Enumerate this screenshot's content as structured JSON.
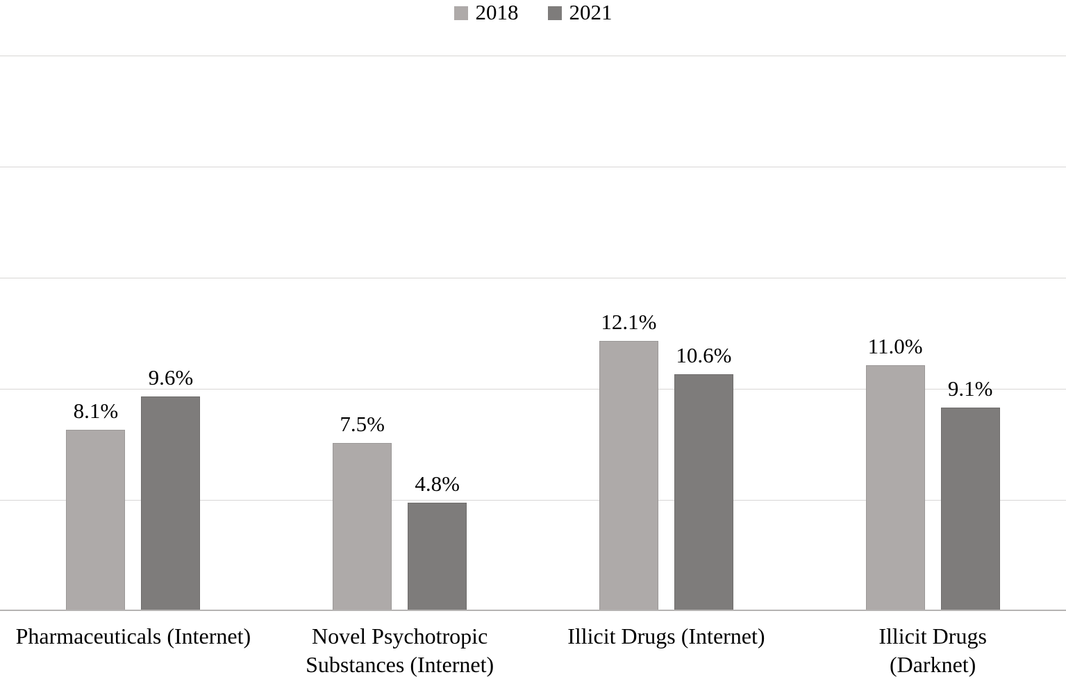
{
  "chart_data": {
    "type": "bar",
    "title": "",
    "xlabel": "",
    "ylabel": "",
    "categories": [
      "Pharmaceuticals (Internet)",
      "Novel Psychotropic\nSubstances (Internet)",
      "Illicit Drugs (Internet)",
      "Illicit Drugs (Darknet)"
    ],
    "series": [
      {
        "name": "2018",
        "color": "#aeaaa9",
        "border_color": "#9b9897",
        "values": [
          8.1,
          7.5,
          12.1,
          11.0
        ],
        "value_labels": [
          "8.1%",
          "7.5%",
          "12.1%",
          "11.0%"
        ]
      },
      {
        "name": "2021",
        "color": "#7e7c7b",
        "border_color": "#6f6d6c",
        "values": [
          9.6,
          4.8,
          10.6,
          9.1
        ],
        "value_labels": [
          "9.6%",
          "4.8%",
          "10.6%",
          "9.1%"
        ]
      }
    ],
    "ylim": [
      0,
      25
    ],
    "gridline_interval": 5,
    "grid": true,
    "y_tick_labels_visible": false,
    "legend_position": "top-center",
    "colors": {
      "background": "#ffffff",
      "gridline": "#d8d6d5",
      "axis_line": "#b5b3b2",
      "text": "#000000"
    }
  }
}
